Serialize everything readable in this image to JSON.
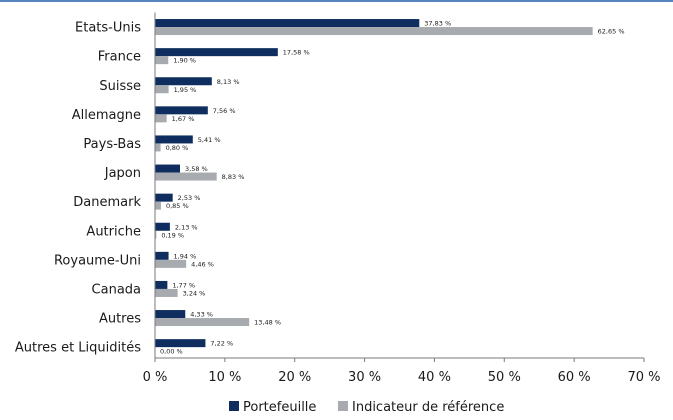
{
  "colors": {
    "portefeuille": "#0f2d5e",
    "indicateur": "#a7abaf",
    "axis": "#7a7a7a",
    "top_rule": "#1f5fa8"
  },
  "chart_data": {
    "type": "bar",
    "orientation": "horizontal",
    "categories": [
      "Etats-Unis",
      "France",
      "Suisse",
      "Allemagne",
      "Pays-Bas",
      "Japon",
      "Danemark",
      "Autriche",
      "Royaume-Uni",
      "Canada",
      "Autres",
      "Autres et Liquidités"
    ],
    "series": [
      {
        "name": "Portefeuille",
        "values": [
          37.83,
          17.58,
          8.13,
          7.56,
          5.41,
          3.58,
          2.53,
          2.13,
          1.94,
          1.77,
          4.33,
          7.22
        ],
        "labels": [
          "37,83 %",
          "17,58 %",
          "8,13 %",
          "7,56 %",
          "5,41 %",
          "3,58 %",
          "2,53 %",
          "2,13 %",
          "1,94 %",
          "1,77 %",
          "4,33 %",
          "7,22 %"
        ]
      },
      {
        "name": "Indicateur de référence",
        "values": [
          62.65,
          1.9,
          1.95,
          1.67,
          0.8,
          8.83,
          0.85,
          0.19,
          4.46,
          3.24,
          13.48,
          0.0
        ],
        "labels": [
          "62,65 %",
          "1,90 %",
          "1,95 %",
          "1,67 %",
          "0,80 %",
          "8,83 %",
          "0,85 %",
          "0,19 %",
          "4,46 %",
          "3,24 %",
          "13,48 %",
          "0,00 %"
        ]
      }
    ],
    "x_ticks": [
      0,
      10,
      20,
      30,
      40,
      50,
      60,
      70
    ],
    "x_tick_labels": [
      "0 %",
      "10 %",
      "20 %",
      "30 %",
      "40 %",
      "50 %",
      "60 %",
      "70 %"
    ],
    "xlim": [
      0,
      70
    ],
    "grid": false,
    "legend_position": "bottom"
  }
}
